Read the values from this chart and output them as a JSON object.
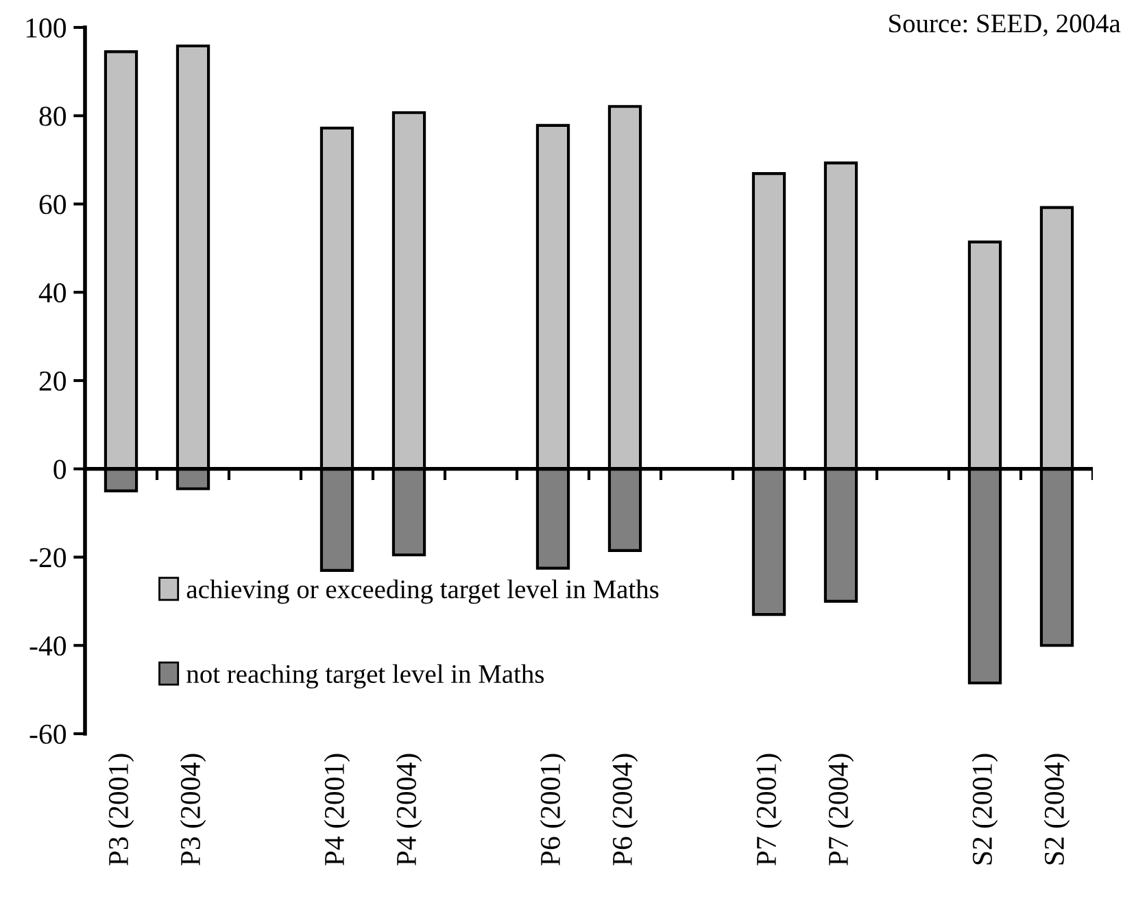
{
  "chart_data": {
    "type": "bar",
    "stacked": true,
    "categories": [
      "P3 (2001)",
      "P3 (2004)",
      null,
      "P4 (2001)",
      "P4 (2004)",
      null,
      "P6 (2001)",
      "P6 (2004)",
      null,
      "P7 (2001)",
      "P7 (2004)",
      null,
      "S2 (2001)",
      "S2 (2004)"
    ],
    "series": [
      {
        "name": "achieving or exceeding target level in Maths",
        "color": "#c0c0c0",
        "values": [
          94.5,
          95.8,
          null,
          77.2,
          80.7,
          null,
          77.8,
          82.1,
          null,
          66.9,
          69.3,
          null,
          51.4,
          59.2
        ]
      },
      {
        "name": "not reaching target level in Maths",
        "color": "#808080",
        "values": [
          -5,
          -4.5,
          null,
          -23,
          -19.5,
          null,
          -22.5,
          -18.5,
          null,
          -33,
          -30,
          null,
          -48.5,
          -40
        ]
      }
    ],
    "ylim": [
      -60,
      100
    ],
    "yticks": [
      -60,
      -40,
      -20,
      0,
      20,
      40,
      60,
      80,
      100
    ],
    "annotations": [
      "Source: SEED, 2004a"
    ],
    "legend": "bottom left"
  }
}
